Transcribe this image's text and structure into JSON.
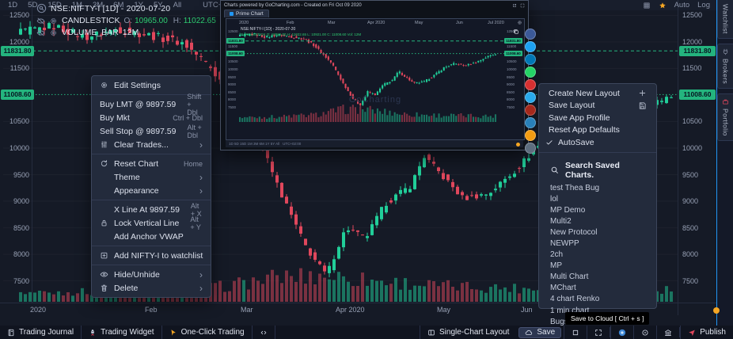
{
  "app": {
    "accent": "#2196f3",
    "green": "#21ce99",
    "red": "#e0475c",
    "badge_green": "#24b47e",
    "orange": "#f5a623"
  },
  "legend": {
    "symbol": "NSE:NIFTY-I [1D] - 2020-07-20",
    "study": "CANDLESTICK",
    "ohlc": [
      {
        "k": "O:",
        "v": "10965.00"
      },
      {
        "k": "H:",
        "v": "11022.65"
      },
      {
        "k": "L:",
        "v": "10921.00"
      },
      {
        "k": "C:",
        "v": "11008.60"
      }
    ],
    "volume_study": "VOLUME_BAR",
    "volume_value": "12M"
  },
  "price_axis": {
    "ticks": [
      12500,
      12000,
      11500,
      10500,
      10000,
      9500,
      9000,
      8500,
      8000,
      7500
    ],
    "badges": [
      {
        "price": 11831.8,
        "label": "11831.80",
        "style": "dashed"
      },
      {
        "price": 11008.6,
        "label": "11008.60",
        "style": "dotted"
      }
    ]
  },
  "date_axis": [
    {
      "label": "2020",
      "x": 38
    },
    {
      "label": "Feb",
      "x": 183
    },
    {
      "label": "Mar",
      "x": 304
    },
    {
      "label": "Apr 2020",
      "x": 424
    },
    {
      "label": "May",
      "x": 552
    },
    {
      "label": "Jun",
      "x": 658
    }
  ],
  "context_menu": {
    "items": [
      {
        "icon": "gear-icon",
        "label": "Edit Settings"
      },
      {
        "divider": true
      },
      {
        "label": "Buy LMT @ 9897.59",
        "accel": "Shift + Dbl",
        "flush": true
      },
      {
        "label": "Buy Mkt",
        "accel": "Ctrl + Dbl",
        "flush": true
      },
      {
        "label": "Sell Stop @ 9897.59",
        "accel": "Alt + Dbl",
        "flush": true
      },
      {
        "icon": "sliders-icon",
        "label": "Clear Trades...",
        "submenu": true
      },
      {
        "divider": true
      },
      {
        "icon": "reset-icon",
        "label": "Reset Chart",
        "accel": "Home"
      },
      {
        "label": "Theme",
        "submenu": true,
        "indent": true
      },
      {
        "label": "Appearance",
        "submenu": true,
        "indent": true
      },
      {
        "divider": true
      },
      {
        "label": "X Line At 9897.59",
        "accel": "Alt + X",
        "indent": true
      },
      {
        "icon": "lock-icon",
        "label": "Lock Vertical Line",
        "accel": "Alt + Y"
      },
      {
        "label": "Add Anchor VWAP",
        "indent": true
      },
      {
        "divider": true
      },
      {
        "icon": "watchlist-add-icon",
        "label": "Add NIFTY-I to watchlist"
      },
      {
        "divider": true
      },
      {
        "icon": "eye-icon",
        "label": "Hide/Unhide",
        "submenu": true
      },
      {
        "icon": "trash-icon",
        "label": "Delete",
        "submenu": true
      }
    ]
  },
  "layout_menu": {
    "items": [
      {
        "label": "Create New Layout",
        "right_icon": "plus-icon"
      },
      {
        "label": "Save Layout",
        "right_icon": "save-icon"
      },
      {
        "label": "Save App Profile"
      },
      {
        "label": "Reset App Defaults"
      },
      {
        "label": "AutoSave",
        "checked": true
      }
    ],
    "search_placeholder": "Search Saved Charts.",
    "saved_charts": [
      "test Thea Bug",
      "lol",
      "MP Demo",
      "Multi2",
      "New Protocol",
      "NEWPP",
      "2ch",
      "MP",
      "Multi Chart",
      "MChart",
      "4 chart Renko",
      "1 min chart",
      "Bugs"
    ]
  },
  "popup": {
    "header": "Charts powered by GoCharting.com - Created on Fri Oct 09 2020",
    "tab": "Prime Chart",
    "watermark": "GoCharting",
    "date_labels": [
      {
        "label": "2020",
        "x": 16
      },
      {
        "label": "Feb",
        "x": 76
      },
      {
        "label": "Mar",
        "x": 128
      },
      {
        "label": "Apr 2020",
        "x": 178
      },
      {
        "label": "May",
        "x": 238
      },
      {
        "label": "Jun",
        "x": 290
      },
      {
        "label": "Jul 2020",
        "x": 330
      }
    ],
    "legend_line1": "NSE:NIFTY-I [1D] - 2020-07-20",
    "legend_line2": "CANDLESTICK O: 10965.00 H: 11022.65 L: 10921.00 C: 11008.60  Vol: 12M",
    "footer_text": "1D   5D   15D   1M   3M   6M   1Y   5Y   All",
    "footer_tz": "UTC+02:00",
    "share_icons": [
      {
        "name": "facebook-icon",
        "color": "#3b5998"
      },
      {
        "name": "twitter-icon",
        "color": "#1da1f2"
      },
      {
        "name": "linkedin-icon",
        "color": "#0077b5"
      },
      {
        "name": "whatsapp-icon",
        "color": "#25d366"
      },
      {
        "name": "pinterest-icon",
        "color": "#d63031"
      },
      {
        "name": "telegram-icon",
        "color": "#29a9eb"
      },
      {
        "name": "gmail-icon",
        "color": "#a5281b"
      },
      {
        "name": "vk-icon",
        "color": "#2980b9"
      },
      {
        "name": "reddit-icon",
        "color": "#f39c12"
      },
      {
        "name": "email-icon",
        "color": "#5d6d7e"
      }
    ]
  },
  "tooltip": "Save to Cloud [ Ctrl + s ]",
  "footer": {
    "timeframes": [
      "1D",
      "5D",
      "15D",
      "1M",
      "3M",
      "6M",
      "1Y",
      "5Y",
      "All"
    ],
    "timezone": "UTC+02:00",
    "right_items": [
      {
        "icon": "grid-icon"
      },
      {
        "icon": "star-icon"
      },
      {
        "label": "Auto"
      },
      {
        "label": "Log"
      }
    ]
  },
  "bottom_bar": {
    "left": [
      {
        "icon": "journal-icon",
        "label": "Trading Journal"
      },
      {
        "icon": "rocket-icon",
        "label": "Trading Widget"
      },
      {
        "icon": "pointer-icon",
        "label": "One-Click Trading"
      },
      {
        "icon": "code-icon"
      }
    ],
    "right": [
      {
        "icon": "layout-icon",
        "label": "Single-Chart Layout"
      },
      {
        "icon": "cloud-icon",
        "label": "Save",
        "boxed": true
      },
      {
        "icon": "square-icon"
      },
      {
        "icon": "expand-icon"
      },
      {
        "sep": true
      },
      {
        "icon": "camera-icon"
      },
      {
        "icon": "target-icon"
      },
      {
        "icon": "bank-icon"
      },
      {
        "sep": true
      },
      {
        "icon": "publish-icon",
        "label": "Publish"
      }
    ]
  },
  "side_tabs": [
    {
      "icon": "watchlist-icon",
      "label": "Watchlist"
    },
    {
      "icon": "brokers-icon",
      "label": "Brokers"
    },
    {
      "icon": "portfolio-icon",
      "label": "Portfolio"
    }
  ],
  "chart_data": {
    "type": "candlestick",
    "title": "NSE:NIFTY-I",
    "interval": "1D",
    "session_date": "2020-07-20",
    "last_bar": {
      "open": 10965.0,
      "high": 11022.65,
      "low": 10921.0,
      "close": 11008.6,
      "volume": "12M"
    },
    "x_categories": [
      "2020",
      "Feb",
      "Mar",
      "Apr 2020",
      "May",
      "Jun"
    ],
    "ylim": [
      7500,
      12500
    ],
    "price_lines": [
      11831.8,
      11008.6
    ],
    "anchors": {
      "t": [
        0,
        0.05,
        0.1,
        0.15,
        0.2,
        0.25,
        0.29,
        0.32,
        0.36,
        0.4,
        0.44,
        0.47,
        0.5,
        0.53,
        0.56,
        0.6,
        0.62,
        0.65,
        0.68,
        0.72,
        0.76,
        0.8,
        0.84,
        0.88,
        0.92,
        0.96,
        1
      ],
      "price": [
        12180,
        12300,
        12090,
        12240,
        12120,
        11980,
        11550,
        11050,
        10350,
        9150,
        8100,
        7610,
        8500,
        8300,
        8950,
        9300,
        9850,
        9450,
        9050,
        9150,
        9580,
        10100,
        10350,
        10200,
        10400,
        10750,
        11009
      ]
    },
    "volume_anchors": {
      "t": [
        0,
        0.15,
        0.3,
        0.4,
        0.47,
        0.55,
        0.65,
        0.8,
        1
      ],
      "v": [
        0.35,
        0.4,
        0.55,
        0.95,
        1.0,
        0.8,
        0.6,
        0.5,
        0.45
      ]
    }
  }
}
